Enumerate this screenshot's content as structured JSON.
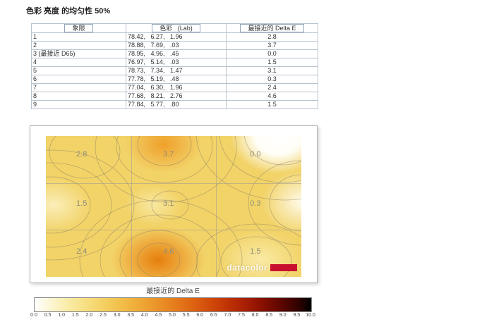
{
  "title": "色彩 亮度 的均匀性 50%",
  "table": {
    "headers": [
      "象限",
      "色彩 (Lab)",
      "最接近的 Delta E"
    ],
    "rows": [
      [
        "1",
        "78.42, 6.27, 1.96",
        "2.8"
      ],
      [
        "2",
        "78.88, 7.69, .03",
        "3.7"
      ],
      [
        "3 (最接近 D65)",
        "78.95, 4.96, .45",
        "0.0"
      ],
      [
        "4",
        "76.97, 5.14, .03",
        "1.5"
      ],
      [
        "5",
        "78.73, 7.34, 1.47",
        "3.1"
      ],
      [
        "6",
        "77.78, 5.19, .48",
        "0.3"
      ],
      [
        "7",
        "77.04, 6.30, 1.96",
        "2.4"
      ],
      [
        "8",
        "77.68, 8.21, 2.76",
        "4.6"
      ],
      [
        "9",
        "77.84, 5.77, .80",
        "1.5"
      ]
    ]
  },
  "heatmap": {
    "caption": "最接近的 Delta E",
    "logo_text": "datacolor",
    "logo_color": "#c8102e"
  },
  "colorbar": {
    "ticks": [
      "0.0",
      "0.5",
      "1.0",
      "1.5",
      "2.0",
      "2.5",
      "3.0",
      "3.5",
      "4.0",
      "4.5",
      "5.0",
      "5.5",
      "6.0",
      "6.5",
      "7.0",
      "7.5",
      "8.0",
      "8.5",
      "9.0",
      "9.5",
      "10.0"
    ]
  },
  "chart_data": {
    "type": "heatmap",
    "title": "色彩 亮度 的均匀性 50%",
    "rows": 3,
    "cols": 3,
    "values": [
      [
        2.8,
        3.7,
        0.0
      ],
      [
        1.5,
        3.1,
        0.3
      ],
      [
        2.4,
        4.6,
        1.5
      ]
    ],
    "colorbar_label": "最接近的 Delta E",
    "colorbar_range": [
      0.0,
      10.0
    ],
    "colorbar_tick_step": 0.5,
    "colormap": "white-yellow-orange-red-black",
    "grid": true,
    "legend_position": "bottom"
  }
}
